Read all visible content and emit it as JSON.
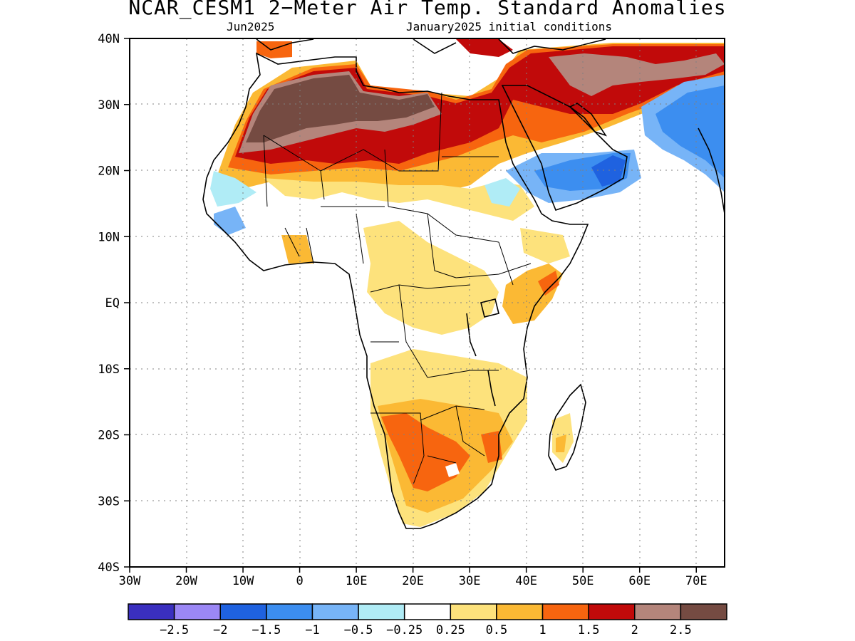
{
  "title": "NCAR_CESM1 2−Meter Air Temp. Standard Anomalies",
  "subtitle_left": "Jun2025",
  "subtitle_right": "January2025 initial conditions",
  "map": {
    "lon_range": [
      -30,
      75
    ],
    "lat_range": [
      -40,
      40
    ],
    "lat_labels": [
      "40N",
      "30N",
      "20N",
      "10N",
      "EQ",
      "10S",
      "20S",
      "30S",
      "40S"
    ],
    "lon_labels": [
      "30W",
      "20W",
      "10W",
      "0",
      "10E",
      "20E",
      "30E",
      "40E",
      "50E",
      "60E",
      "70E"
    ],
    "gridlines": "dotted"
  },
  "colorbar": {
    "colors": [
      "#3a2fbf",
      "#9b87f5",
      "#1f62e0",
      "#3c8ef0",
      "#77b4f7",
      "#b0ecf6",
      "#ffffff",
      "#fde27c",
      "#fbb934",
      "#f7650f",
      "#c10a0a",
      "#b4857b",
      "#754b42"
    ],
    "labels": [
      "−2.5",
      "−2",
      "−1.5",
      "−1",
      "−0.5",
      "−0.25",
      "0.25",
      "0.5",
      "1",
      "1.5",
      "2",
      "2.5"
    ]
  }
}
